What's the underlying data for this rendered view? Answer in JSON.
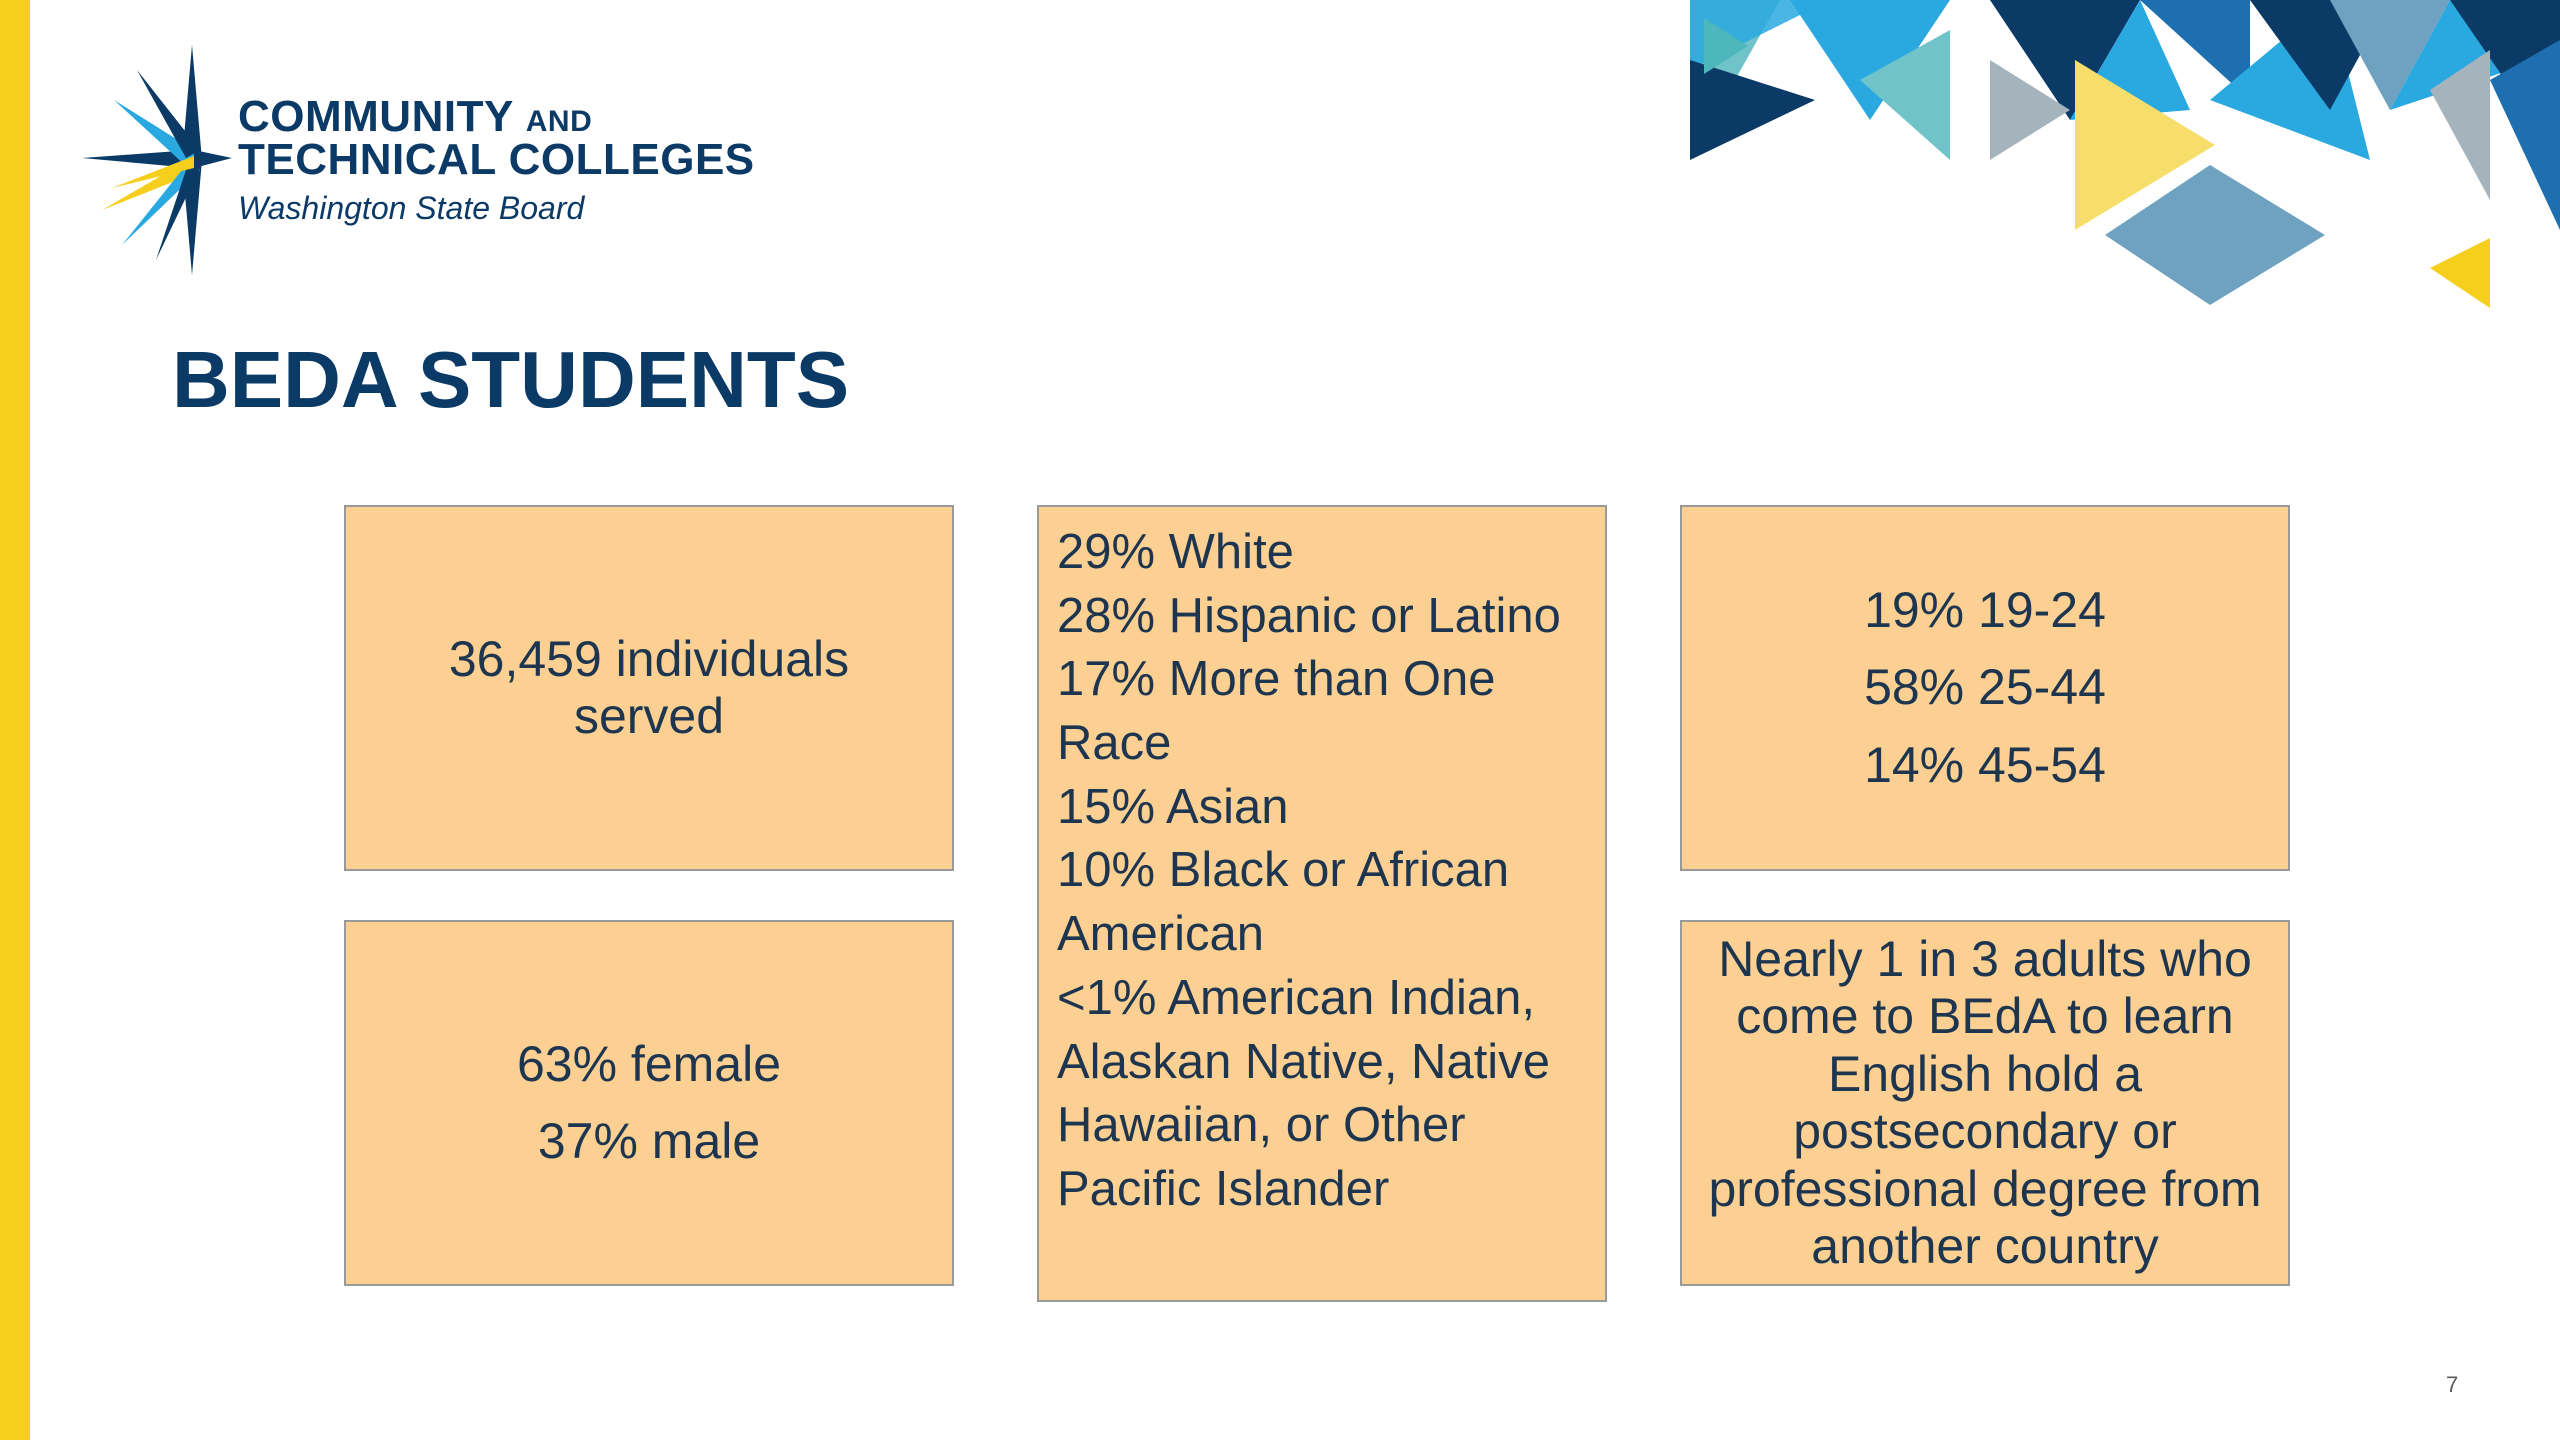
{
  "logo": {
    "line1_main": "COMMUNITY",
    "line1_small": "AND",
    "line2": "TECHNICAL COLLEGES",
    "line3": "Washington State Board"
  },
  "slide": {
    "title": "BEDA STUDENTS",
    "page_number": "7"
  },
  "boxes": {
    "individuals": "36,459 individuals served",
    "gender": [
      "63% female",
      "37% male"
    ],
    "race": [
      "29% White",
      "28% Hispanic or Latino",
      "17% More than One Race",
      "15% Asian",
      "10% Black or African American",
      "<1% American Indian, Alaskan Native, Native Hawaiian, or Other Pacific Islander"
    ],
    "age": [
      "19% 19-24",
      "58% 25-44",
      "14% 45-54"
    ],
    "degree": "Nearly 1 in 3 adults who come to BEdA to learn English hold a postsecondary or professional degree from another country"
  },
  "colors": {
    "accent_bar": "#F5CF1C",
    "navy": "#0B3A66",
    "box_fill": "#FCD092",
    "box_border": "#9A9A9A"
  }
}
